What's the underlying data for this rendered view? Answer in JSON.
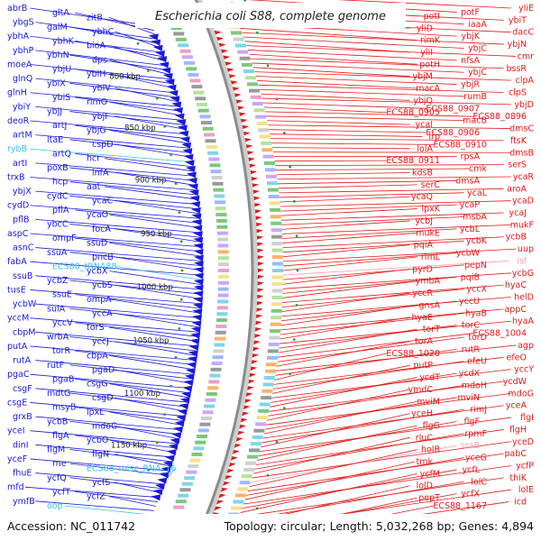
{
  "title": "Escherichia coli S88, complete genome",
  "accession": "Accession: NC_011742",
  "summary": "Topology: circular; Length: 5,032,268 bp; Genes: 4,894",
  "colors": {
    "forward": "#e21b1b",
    "reverse": "#1a1ad8",
    "rna": "#35c4e6",
    "backbone": "#8c8c8c",
    "tick": "#2f9e2f",
    "pink": "#ff9db0"
  },
  "ticks": [
    "800 kbp",
    "850 kbp",
    "900 kbp",
    "950 kbp",
    "1000 kbp",
    "1050 kbp",
    "1100 kbp",
    "1150 kbp"
  ],
  "left_genes": [
    {
      "name": "abrB",
      "kind": "reverse"
    },
    {
      "name": "gltA",
      "kind": "reverse"
    },
    {
      "name": "zitB",
      "kind": "reverse"
    },
    {
      "name": "ybgS",
      "kind": "reverse"
    },
    {
      "name": "galM",
      "kind": "reverse"
    },
    {
      "name": "ybhC",
      "kind": "reverse"
    },
    {
      "name": "ybhA",
      "kind": "reverse"
    },
    {
      "name": "ybhK",
      "kind": "reverse"
    },
    {
      "name": "bioA",
      "kind": "reverse"
    },
    {
      "name": "ybhP",
      "kind": "reverse"
    },
    {
      "name": "ybhN",
      "kind": "reverse"
    },
    {
      "name": "dps",
      "kind": "reverse"
    },
    {
      "name": "moeA",
      "kind": "reverse"
    },
    {
      "name": "ybjU",
      "kind": "reverse"
    },
    {
      "name": "ybiH",
      "kind": "reverse"
    },
    {
      "name": "glnQ",
      "kind": "reverse"
    },
    {
      "name": "ybiX",
      "kind": "reverse"
    },
    {
      "name": "ybiV",
      "kind": "reverse"
    },
    {
      "name": "glnH",
      "kind": "reverse"
    },
    {
      "name": "ybiS",
      "kind": "reverse"
    },
    {
      "name": "rimO",
      "kind": "reverse"
    },
    {
      "name": "ybiY",
      "kind": "reverse"
    },
    {
      "name": "ybjJ",
      "kind": "reverse"
    },
    {
      "name": "ybjI",
      "kind": "reverse"
    },
    {
      "name": "deoR",
      "kind": "reverse"
    },
    {
      "name": "artJ",
      "kind": "reverse"
    },
    {
      "name": "ybjG",
      "kind": "reverse"
    },
    {
      "name": "artM",
      "kind": "reverse"
    },
    {
      "name": "ltaE",
      "kind": "reverse"
    },
    {
      "name": "cspD",
      "kind": "reverse"
    },
    {
      "name": "rybB",
      "kind": "rna"
    },
    {
      "name": "artQ",
      "kind": "reverse"
    },
    {
      "name": "hcr",
      "kind": "reverse"
    },
    {
      "name": "artI",
      "kind": "reverse"
    },
    {
      "name": "poxB",
      "kind": "reverse"
    },
    {
      "name": "infA",
      "kind": "reverse"
    },
    {
      "name": "trxB",
      "kind": "reverse"
    },
    {
      "name": "hcp",
      "kind": "reverse"
    },
    {
      "name": "aat",
      "kind": "reverse"
    },
    {
      "name": "ybjX",
      "kind": "reverse"
    },
    {
      "name": "cydC",
      "kind": "reverse"
    },
    {
      "name": "ycaC",
      "kind": "reverse"
    },
    {
      "name": "cydD",
      "kind": "reverse"
    },
    {
      "name": "pflA",
      "kind": "reverse"
    },
    {
      "name": "ycaO",
      "kind": "reverse"
    },
    {
      "name": "pflB",
      "kind": "reverse"
    },
    {
      "name": "ybcC",
      "kind": "reverse"
    },
    {
      "name": "focA",
      "kind": "reverse"
    },
    {
      "name": "aspC",
      "kind": "reverse"
    },
    {
      "name": "ompF",
      "kind": "reverse"
    },
    {
      "name": "ssuD",
      "kind": "reverse"
    },
    {
      "name": "asnC",
      "kind": "reverse"
    },
    {
      "name": "ssuA",
      "kind": "reverse"
    },
    {
      "name": "pncB",
      "kind": "reverse"
    },
    {
      "name": "fabA",
      "kind": "reverse"
    },
    {
      "name": "ECS88_tRNA88",
      "kind": "rna"
    },
    {
      "name": "ycbX",
      "kind": "reverse"
    },
    {
      "name": "ssuB",
      "kind": "reverse"
    },
    {
      "name": "ycbZ",
      "kind": "reverse"
    },
    {
      "name": "ycbS",
      "kind": "reverse"
    },
    {
      "name": "tusE",
      "kind": "reverse"
    },
    {
      "name": "ssuE",
      "kind": "reverse"
    },
    {
      "name": "ompA",
      "kind": "reverse"
    },
    {
      "name": "ycbW",
      "kind": "reverse"
    },
    {
      "name": "sulA",
      "kind": "reverse"
    },
    {
      "name": "yccA",
      "kind": "reverse"
    },
    {
      "name": "yccM",
      "kind": "reverse"
    },
    {
      "name": "yccV",
      "kind": "reverse"
    },
    {
      "name": "torS",
      "kind": "reverse"
    },
    {
      "name": "cbpM",
      "kind": "reverse"
    },
    {
      "name": "wrbA",
      "kind": "reverse"
    },
    {
      "name": "yccJ",
      "kind": "reverse"
    },
    {
      "name": "putA",
      "kind": "reverse"
    },
    {
      "name": "torR",
      "kind": "reverse"
    },
    {
      "name": "cbpA",
      "kind": "reverse"
    },
    {
      "name": "rutA",
      "kind": "reverse"
    },
    {
      "name": "rutF",
      "kind": "reverse"
    },
    {
      "name": "pgaD",
      "kind": "reverse"
    },
    {
      "name": "pgaC",
      "kind": "reverse"
    },
    {
      "name": "pgaB",
      "kind": "reverse"
    },
    {
      "name": "csgG",
      "kind": "reverse"
    },
    {
      "name": "csgF",
      "kind": "reverse"
    },
    {
      "name": "mdtG",
      "kind": "reverse"
    },
    {
      "name": "csgD",
      "kind": "reverse"
    },
    {
      "name": "csgE",
      "kind": "reverse"
    },
    {
      "name": "msyB",
      "kind": "reverse"
    },
    {
      "name": "lpxL",
      "kind": "reverse"
    },
    {
      "name": "grxB",
      "kind": "reverse"
    },
    {
      "name": "ycbB",
      "kind": "reverse"
    },
    {
      "name": "mdoC",
      "kind": "reverse"
    },
    {
      "name": "yceI",
      "kind": "reverse"
    },
    {
      "name": "flgA",
      "kind": "reverse"
    },
    {
      "name": "ycbO",
      "kind": "reverse"
    },
    {
      "name": "dinI",
      "kind": "reverse"
    },
    {
      "name": "flgM",
      "kind": "reverse"
    },
    {
      "name": "flgN",
      "kind": "reverse"
    },
    {
      "name": "yceF",
      "kind": "reverse"
    },
    {
      "name": "rne",
      "kind": "reverse"
    },
    {
      "name": "ECS88_misc_RNA_16",
      "kind": "rna"
    },
    {
      "name": "fhuE",
      "kind": "reverse"
    },
    {
      "name": "ycfQ",
      "kind": "reverse"
    },
    {
      "name": "ycfS",
      "kind": "reverse"
    },
    {
      "name": "mfd",
      "kind": "reverse"
    },
    {
      "name": "ycfT",
      "kind": "reverse"
    },
    {
      "name": "ycfZ",
      "kind": "reverse"
    },
    {
      "name": "ymfB",
      "kind": "reverse"
    },
    {
      "name": "oop",
      "kind": "rna"
    }
  ],
  "right_genes": [
    {
      "name": "yliE",
      "kind": "forward"
    },
    {
      "name": "potF",
      "kind": "forward"
    },
    {
      "name": "potI",
      "kind": "forward"
    },
    {
      "name": "ybiT",
      "kind": "forward"
    },
    {
      "name": "iaaA",
      "kind": "forward"
    },
    {
      "name": "yliD",
      "kind": "forward"
    },
    {
      "name": "dacC",
      "kind": "forward"
    },
    {
      "name": "ybjK",
      "kind": "forward"
    },
    {
      "name": "rimK",
      "kind": "forward"
    },
    {
      "name": "ybjN",
      "kind": "forward"
    },
    {
      "name": "ybjC",
      "kind": "forward"
    },
    {
      "name": "yliI",
      "kind": "forward"
    },
    {
      "name": "cmr",
      "kind": "forward"
    },
    {
      "name": "nfsA",
      "kind": "forward"
    },
    {
      "name": "potH",
      "kind": "forward"
    },
    {
      "name": "bssR",
      "kind": "forward"
    },
    {
      "name": "ybjC",
      "kind": "forward"
    },
    {
      "name": "ybjM",
      "kind": "forward"
    },
    {
      "name": "clpA",
      "kind": "forward"
    },
    {
      "name": "ybjR",
      "kind": "forward"
    },
    {
      "name": "macA",
      "kind": "forward"
    },
    {
      "name": "clpS",
      "kind": "forward"
    },
    {
      "name": "rumB",
      "kind": "forward"
    },
    {
      "name": "ybjQ",
      "kind": "forward"
    },
    {
      "name": "ybjD",
      "kind": "forward"
    },
    {
      "name": "ECS88_0907",
      "kind": "forward"
    },
    {
      "name": "ECS88_0905",
      "kind": "forward"
    },
    {
      "name": "ECS88_0896",
      "kind": "forward"
    },
    {
      "name": "macB",
      "kind": "forward"
    },
    {
      "name": "ycaI",
      "kind": "forward"
    },
    {
      "name": "dmsC",
      "kind": "forward"
    },
    {
      "name": "ECS88_0906",
      "kind": "forward"
    },
    {
      "name": "lrp",
      "kind": "forward"
    },
    {
      "name": "ftsK",
      "kind": "forward"
    },
    {
      "name": "ECS88_0910",
      "kind": "forward"
    },
    {
      "name": "lolA",
      "kind": "forward"
    },
    {
      "name": "dmsB",
      "kind": "forward"
    },
    {
      "name": "rpsA",
      "kind": "forward"
    },
    {
      "name": "ECS88_0911",
      "kind": "forward"
    },
    {
      "name": "serS",
      "kind": "forward"
    },
    {
      "name": "cmk",
      "kind": "forward"
    },
    {
      "name": "kdsB",
      "kind": "forward"
    },
    {
      "name": "ycaR",
      "kind": "forward"
    },
    {
      "name": "dmsA",
      "kind": "forward"
    },
    {
      "name": "serC",
      "kind": "forward"
    },
    {
      "name": "aroA",
      "kind": "forward"
    },
    {
      "name": "ycaL",
      "kind": "forward"
    },
    {
      "name": "ycaQ",
      "kind": "forward"
    },
    {
      "name": "ycaD",
      "kind": "forward"
    },
    {
      "name": "ycaP",
      "kind": "forward"
    },
    {
      "name": "lpxK",
      "kind": "forward"
    },
    {
      "name": "ycaJ",
      "kind": "forward"
    },
    {
      "name": "msbA",
      "kind": "forward"
    },
    {
      "name": "ycbJ",
      "kind": "forward"
    },
    {
      "name": "mukF",
      "kind": "forward"
    },
    {
      "name": "ycbL",
      "kind": "forward"
    },
    {
      "name": "mukE",
      "kind": "forward"
    },
    {
      "name": "ycbB",
      "kind": "forward"
    },
    {
      "name": "ycbK",
      "kind": "forward"
    },
    {
      "name": "pqiA",
      "kind": "forward"
    },
    {
      "name": "uup",
      "kind": "forward"
    },
    {
      "name": "ycbW",
      "kind": "forward"
    },
    {
      "name": "rlmL",
      "kind": "forward"
    },
    {
      "name": "isf",
      "kind": "pink"
    },
    {
      "name": "pepN",
      "kind": "forward"
    },
    {
      "name": "pyrD",
      "kind": "forward"
    },
    {
      "name": "ycbG",
      "kind": "forward"
    },
    {
      "name": "pqiB",
      "kind": "forward"
    },
    {
      "name": "ymbA",
      "kind": "forward"
    },
    {
      "name": "hyaC",
      "kind": "forward"
    },
    {
      "name": "yccX",
      "kind": "forward"
    },
    {
      "name": "yccR",
      "kind": "forward"
    },
    {
      "name": "helD",
      "kind": "forward"
    },
    {
      "name": "yccU",
      "kind": "forward"
    },
    {
      "name": "gnsA",
      "kind": "forward"
    },
    {
      "name": "appC",
      "kind": "forward"
    },
    {
      "name": "hyaB",
      "kind": "forward"
    },
    {
      "name": "hyaE",
      "kind": "forward"
    },
    {
      "name": "hyaA",
      "kind": "forward"
    },
    {
      "name": "torC",
      "kind": "forward"
    },
    {
      "name": "torT",
      "kind": "forward"
    },
    {
      "name": "ECS88_1004",
      "kind": "forward"
    },
    {
      "name": "torD",
      "kind": "forward"
    },
    {
      "name": "torA",
      "kind": "forward"
    },
    {
      "name": "agp",
      "kind": "forward"
    },
    {
      "name": "rutR",
      "kind": "forward"
    },
    {
      "name": "ECS88_1020",
      "kind": "forward"
    },
    {
      "name": "efeO",
      "kind": "forward"
    },
    {
      "name": "efeU",
      "kind": "forward"
    },
    {
      "name": "putP",
      "kind": "forward"
    },
    {
      "name": "yccY",
      "kind": "forward"
    },
    {
      "name": "ycdX",
      "kind": "forward"
    },
    {
      "name": "ycdT",
      "kind": "forward"
    },
    {
      "name": "ycdW",
      "kind": "forward"
    },
    {
      "name": "mdoH",
      "kind": "forward"
    },
    {
      "name": "ymdC",
      "kind": "forward"
    },
    {
      "name": "mdoG",
      "kind": "forward"
    },
    {
      "name": "mviN",
      "kind": "forward"
    },
    {
      "name": "mviM",
      "kind": "forward"
    },
    {
      "name": "yceA",
      "kind": "forward"
    },
    {
      "name": "rimJ",
      "kind": "forward"
    },
    {
      "name": "yceH",
      "kind": "forward"
    },
    {
      "name": "flgI",
      "kind": "forward"
    },
    {
      "name": "flgF",
      "kind": "forward"
    },
    {
      "name": "flgG",
      "kind": "forward"
    },
    {
      "name": "flgH",
      "kind": "forward"
    },
    {
      "name": "rpmF",
      "kind": "forward"
    },
    {
      "name": "rluC",
      "kind": "forward"
    },
    {
      "name": "yceD",
      "kind": "forward"
    },
    {
      "name": "sraB",
      "kind": "pink"
    },
    {
      "name": "holB",
      "kind": "forward"
    },
    {
      "name": "pabC",
      "kind": "forward"
    },
    {
      "name": "yceG",
      "kind": "forward"
    },
    {
      "name": "tmk",
      "kind": "forward"
    },
    {
      "name": "ycfP",
      "kind": "forward"
    },
    {
      "name": "ycfL",
      "kind": "forward"
    },
    {
      "name": "ycfM",
      "kind": "forward"
    },
    {
      "name": "thiK",
      "kind": "forward"
    },
    {
      "name": "lolC",
      "kind": "forward"
    },
    {
      "name": "lolD",
      "kind": "forward"
    },
    {
      "name": "lolE",
      "kind": "forward"
    },
    {
      "name": "ycfX",
      "kind": "forward"
    },
    {
      "name": "pepT",
      "kind": "forward"
    },
    {
      "name": "icd",
      "kind": "forward"
    },
    {
      "name": "ECS88_1167",
      "kind": "forward"
    }
  ]
}
